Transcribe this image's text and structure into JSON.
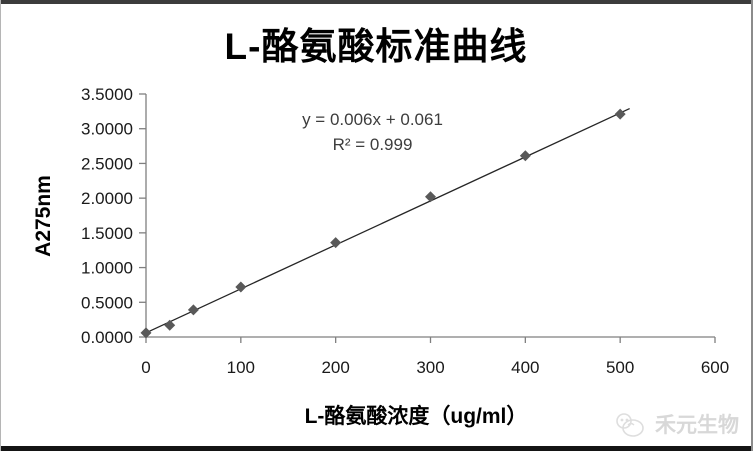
{
  "frame": {
    "watermark": {
      "text": "禾元生物"
    }
  },
  "chart_data": {
    "type": "scatter",
    "title": "L-酪氨酸标准曲线",
    "xlabel": "L-酪氨酸浓度（ug/ml）",
    "ylabel": "A275nm",
    "x": [
      0,
      25,
      50,
      100,
      200,
      300,
      400,
      500
    ],
    "y": [
      0.06,
      0.17,
      0.39,
      0.72,
      1.36,
      2.02,
      2.61,
      3.21
    ],
    "xlim": [
      0,
      600
    ],
    "ylim": [
      0,
      3.5
    ],
    "x_ticks": [
      0,
      100,
      200,
      300,
      400,
      500,
      600
    ],
    "x_tick_labels": [
      "0",
      "100",
      "200",
      "300",
      "400",
      "500",
      "600"
    ],
    "y_ticks": [
      0,
      0.5,
      1.0,
      1.5,
      2.0,
      2.5,
      3.0,
      3.5
    ],
    "y_tick_labels": [
      "0.0000",
      "0.5000",
      "1.0000",
      "1.5000",
      "2.0000",
      "2.5000",
      "3.0000",
      "3.5000"
    ],
    "grid": false,
    "legend": null,
    "annotation": {
      "line1": "y = 0.006x + 0.061",
      "line2": "R² = 0.999"
    },
    "trendline": {
      "x1": 0,
      "y1": 0.06,
      "x2": 510,
      "y2": 3.29
    },
    "colors": {
      "marker": "#595959",
      "trendline": "#262626",
      "axis": "#7f7f7f",
      "tick_label": "#1a1a1a",
      "annotation_text": "#3d3d3d",
      "watermark": "#d8d8d8"
    }
  }
}
